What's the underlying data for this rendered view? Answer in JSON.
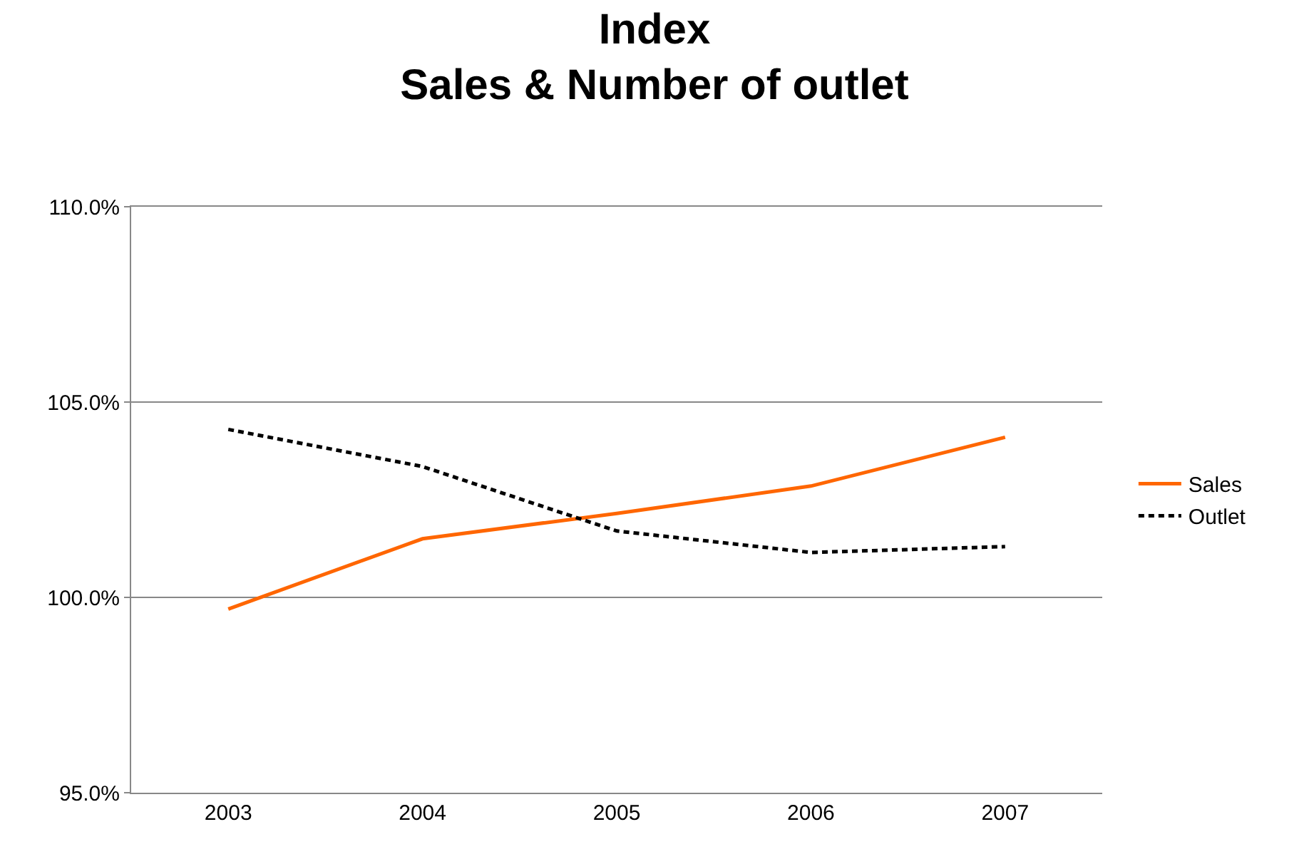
{
  "chart_data": {
    "type": "line",
    "title": "Index\nSales & Number of outlet",
    "categories": [
      "2003",
      "2004",
      "2005",
      "2006",
      "2007"
    ],
    "series": [
      {
        "name": "Sales",
        "color": "#ff6600",
        "values": [
          99.7,
          101.5,
          102.15,
          102.85,
          104.1
        ],
        "line_style": "solid"
      },
      {
        "name": "Outlet",
        "color": "#000000",
        "values": [
          104.3,
          103.35,
          101.7,
          101.15,
          101.3
        ],
        "line_style": "dashed"
      }
    ],
    "ylim": [
      95,
      110
    ],
    "yticks": [
      {
        "value": 95,
        "label": "95.0%"
      },
      {
        "value": 100,
        "label": "100.0%"
      },
      {
        "value": 105,
        "label": "105.0%"
      },
      {
        "value": 110,
        "label": "110.0%"
      }
    ],
    "grid": "y",
    "legend": "right",
    "marker": "none"
  }
}
